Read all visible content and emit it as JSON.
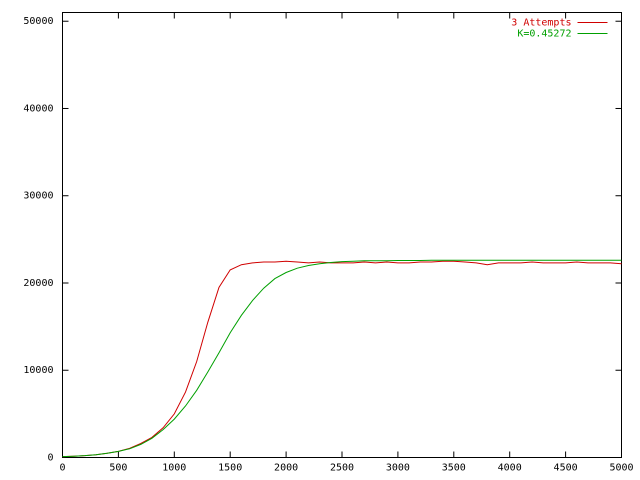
{
  "chart_data": {
    "type": "line",
    "x": [
      0,
      100,
      200,
      300,
      400,
      500,
      600,
      700,
      800,
      900,
      1000,
      1100,
      1200,
      1300,
      1400,
      1500,
      1600,
      1700,
      1800,
      1900,
      2000,
      2100,
      2200,
      2300,
      2400,
      2500,
      2600,
      2700,
      2800,
      2900,
      3000,
      3100,
      3200,
      3300,
      3400,
      3500,
      3600,
      3700,
      3800,
      3900,
      4000,
      4100,
      4200,
      4300,
      4400,
      4500,
      4600,
      4700,
      4800,
      4900,
      5000
    ],
    "series": [
      {
        "name": "3 Attempts",
        "color": "#d00000",
        "values": [
          100,
          150,
          220,
          320,
          480,
          700,
          1050,
          1600,
          2300,
          3400,
          5000,
          7500,
          11000,
          15500,
          19500,
          21500,
          22100,
          22300,
          22400,
          22400,
          22500,
          22400,
          22300,
          22400,
          22300,
          22300,
          22300,
          22400,
          22300,
          22400,
          22300,
          22300,
          22400,
          22400,
          22500,
          22500,
          22400,
          22300,
          22100,
          22300,
          22300,
          22300,
          22400,
          22300,
          22300,
          22300,
          22400,
          22300,
          22300,
          22300,
          22200
        ]
      },
      {
        "name": "K=0.45272",
        "color": "#00a000",
        "values": [
          100,
          150,
          220,
          320,
          480,
          700,
          1000,
          1500,
          2200,
          3200,
          4400,
          5900,
          7700,
          9800,
          12000,
          14300,
          16300,
          18000,
          19400,
          20500,
          21200,
          21700,
          22000,
          22200,
          22350,
          22450,
          22500,
          22550,
          22550,
          22550,
          22580,
          22580,
          22580,
          22600,
          22600,
          22600,
          22600,
          22600,
          22600,
          22600,
          22600,
          22600,
          22600,
          22600,
          22600,
          22600,
          22600,
          22600,
          22600,
          22600,
          22600
        ]
      }
    ],
    "xlim": [
      0,
      5000
    ],
    "xticks": [
      0,
      500,
      1000,
      1500,
      2000,
      2500,
      3000,
      3500,
      4000,
      4500,
      5000
    ],
    "ylim": [
      0,
      51000
    ],
    "yticks": [
      0,
      10000,
      20000,
      30000,
      40000,
      50000
    ],
    "grid": false,
    "legend": "top-right"
  }
}
